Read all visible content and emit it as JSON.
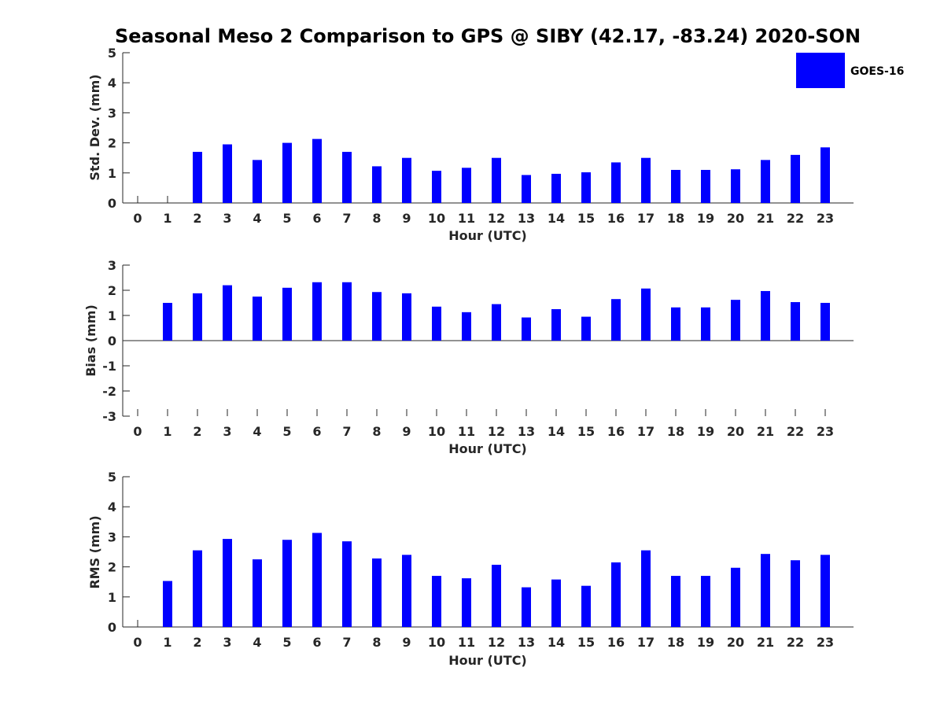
{
  "title": "Seasonal Meso 2 Comparison to GPS @ SIBY (42.17, -83.24) 2020-SON",
  "legend": {
    "label": "GOES-16",
    "color": "#0000ff",
    "position": "top-right"
  },
  "chart_data": [
    {
      "type": "bar",
      "name": "std",
      "xlabel": "Hour (UTC)",
      "ylabel": "Std. Dev. (mm)",
      "ylim": [
        0,
        5
      ],
      "yticks": [
        0,
        1,
        2,
        3,
        4,
        5
      ],
      "categories": [
        "0",
        "1",
        "2",
        "3",
        "4",
        "5",
        "6",
        "7",
        "8",
        "9",
        "10",
        "11",
        "12",
        "13",
        "14",
        "15",
        "16",
        "17",
        "18",
        "19",
        "20",
        "21",
        "22",
        "23"
      ],
      "series": [
        {
          "name": "GOES-16",
          "values": [
            null,
            null,
            1.7,
            1.95,
            1.43,
            2.0,
            2.13,
            1.7,
            1.22,
            1.5,
            1.07,
            1.17,
            1.5,
            0.93,
            0.97,
            1.02,
            1.35,
            1.5,
            1.1,
            1.1,
            1.12,
            1.43,
            1.6,
            1.85
          ]
        }
      ],
      "grid": false
    },
    {
      "type": "bar",
      "name": "bias",
      "xlabel": "Hour (UTC)",
      "ylabel": "Bias (mm)",
      "ylim": [
        -3,
        3
      ],
      "yticks": [
        -3,
        -2,
        -1,
        0,
        1,
        2,
        3
      ],
      "categories": [
        "0",
        "1",
        "2",
        "3",
        "4",
        "5",
        "6",
        "7",
        "8",
        "9",
        "10",
        "11",
        "12",
        "13",
        "14",
        "15",
        "16",
        "17",
        "18",
        "19",
        "20",
        "21",
        "22",
        "23"
      ],
      "series": [
        {
          "name": "GOES-16",
          "values": [
            null,
            1.5,
            1.88,
            2.2,
            1.75,
            2.1,
            2.32,
            2.32,
            1.93,
            1.88,
            1.35,
            1.13,
            1.45,
            0.92,
            1.25,
            0.95,
            1.65,
            2.07,
            1.32,
            1.32,
            1.62,
            1.97,
            1.53,
            1.5
          ]
        }
      ],
      "grid": false
    },
    {
      "type": "bar",
      "name": "rms",
      "xlabel": "Hour (UTC)",
      "ylabel": "RMS (mm)",
      "ylim": [
        0,
        5
      ],
      "yticks": [
        0,
        1,
        2,
        3,
        4,
        5
      ],
      "categories": [
        "0",
        "1",
        "2",
        "3",
        "4",
        "5",
        "6",
        "7",
        "8",
        "9",
        "10",
        "11",
        "12",
        "13",
        "14",
        "15",
        "16",
        "17",
        "18",
        "19",
        "20",
        "21",
        "22",
        "23"
      ],
      "series": [
        {
          "name": "GOES-16",
          "values": [
            null,
            1.53,
            2.55,
            2.93,
            2.25,
            2.9,
            3.13,
            2.85,
            2.28,
            2.4,
            1.7,
            1.62,
            2.07,
            1.32,
            1.58,
            1.37,
            2.15,
            2.55,
            1.7,
            1.7,
            1.97,
            2.43,
            2.22,
            2.4
          ]
        }
      ],
      "grid": false
    }
  ]
}
